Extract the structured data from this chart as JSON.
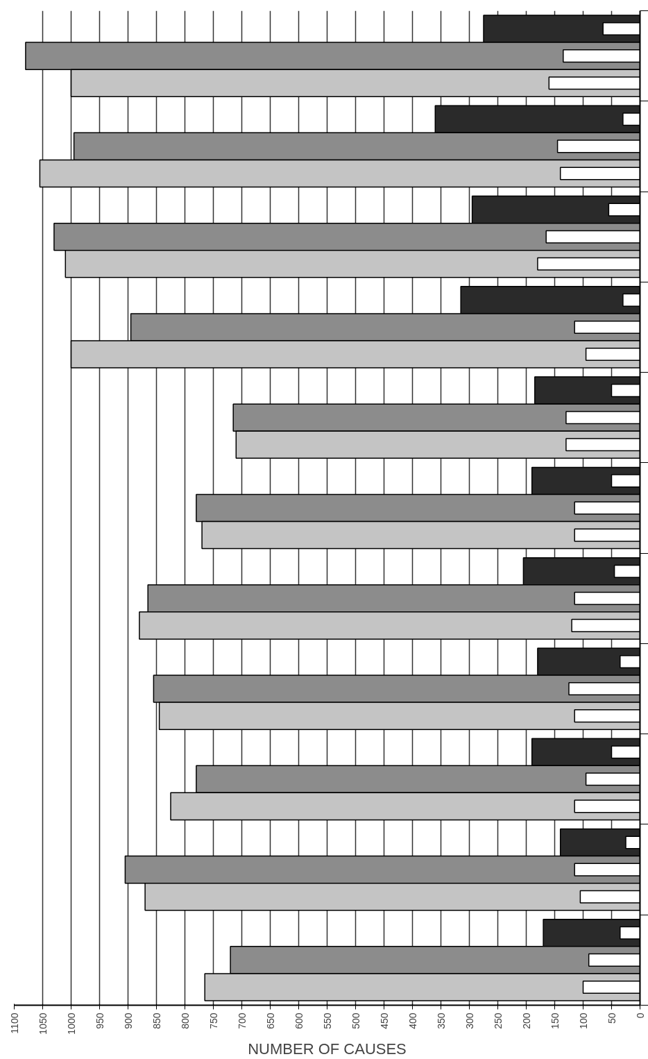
{
  "chart_data": {
    "type": "bar",
    "orientation": "horizontal",
    "xlabel": "NUMBER OF CAUSES",
    "categories": [
      null,
      null,
      null,
      null,
      null,
      null,
      null,
      null,
      null,
      null,
      null
    ],
    "series": [
      {
        "color": "#2a2a2a",
        "values": [
          275,
          360,
          295,
          315,
          185,
          190,
          205,
          180,
          190,
          140,
          170
        ]
      },
      {
        "color": "#ffffff",
        "values": [
          65,
          30,
          55,
          30,
          50,
          50,
          45,
          35,
          50,
          25,
          35
        ]
      },
      {
        "color": "#8c8c8c",
        "values": [
          1080,
          995,
          1030,
          895,
          715,
          780,
          865,
          855,
          780,
          905,
          720
        ]
      },
      {
        "color": "#ffffff",
        "values": [
          135,
          145,
          165,
          115,
          130,
          115,
          115,
          125,
          95,
          115,
          90
        ]
      },
      {
        "color": "#c4c4c4",
        "values": [
          1000,
          1055,
          1010,
          1000,
          710,
          770,
          880,
          845,
          825,
          870,
          765
        ]
      },
      {
        "color": "#ffffff",
        "values": [
          160,
          140,
          180,
          95,
          130,
          115,
          120,
          115,
          115,
          105,
          100
        ]
      }
    ],
    "xlim": [
      1100,
      0
    ],
    "xticks": [
      0,
      50,
      100,
      150,
      200,
      250,
      300,
      350,
      400,
      450,
      500,
      550,
      600,
      650,
      700,
      750,
      800,
      850,
      900,
      950,
      1000,
      1050,
      1100
    ],
    "grid": "x",
    "tick_labels": "x"
  }
}
